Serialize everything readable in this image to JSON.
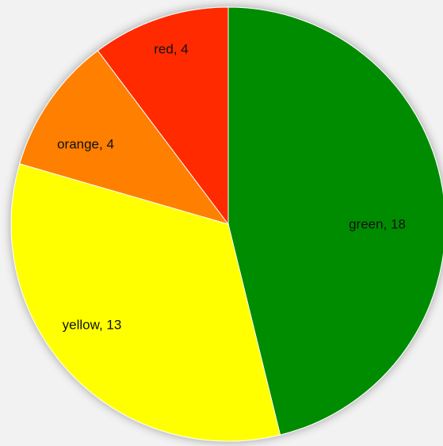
{
  "chart_data": {
    "type": "pie",
    "title": "",
    "slices": [
      {
        "label": "green",
        "value": 18,
        "color": "#008c00",
        "data_label": "green, 18"
      },
      {
        "label": "yellow",
        "value": 13,
        "color": "#ffff00",
        "data_label": "yellow, 13"
      },
      {
        "label": "orange",
        "value": 4,
        "color": "#ff7f00",
        "data_label": "orange, 4"
      },
      {
        "label": "red",
        "value": 4,
        "color": "#ff2a00",
        "data_label": "red, 4"
      }
    ],
    "start_angle": "12 o'clock",
    "direction": "clockwise",
    "legend": "none",
    "data_labels": "category, value"
  },
  "colors": {
    "background": "#f2f2f2",
    "slice_border": "#ffffff"
  }
}
